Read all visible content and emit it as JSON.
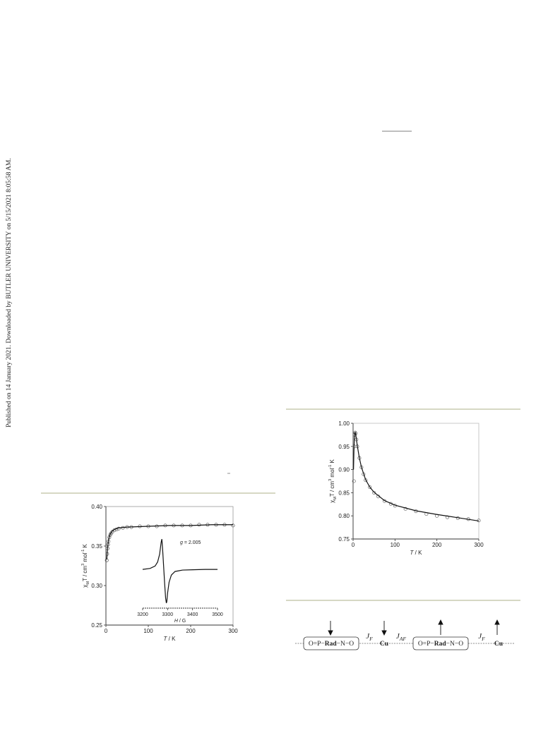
{
  "side_note": "Published on 14 January 2021. Downloaded by BUTLER UNIVERSITY on 5/15/2021 8:05:58 AM.",
  "chart_data": [
    {
      "type": "scatter",
      "xlabel": [
        {
          "text": "T",
          "italic": true
        },
        {
          "text": " / K"
        }
      ],
      "ylabel": [
        {
          "text": "χ"
        },
        {
          "text": "M",
          "sub": true
        },
        {
          "text": "T / cm"
        },
        {
          "text": "3",
          "sup": true
        },
        {
          "text": " mol"
        },
        {
          "text": "-1",
          "sup": true
        },
        {
          "text": " K"
        }
      ],
      "xlim": [
        0,
        300
      ],
      "ylim": [
        0.25,
        0.4
      ],
      "xticks": [
        0,
        100,
        200,
        300
      ],
      "yticks": [
        0.25,
        {
          "value": 0.3,
          "label": "0.30"
        },
        0.35,
        {
          "value": 0.4,
          "label": "0.40"
        }
      ],
      "series": [
        {
          "color": "#555555",
          "marker": "circle",
          "x": [
            2,
            3,
            4,
            5,
            6,
            8,
            10,
            12,
            15,
            20,
            25,
            30,
            40,
            50,
            60,
            80,
            100,
            120,
            140,
            160,
            180,
            200,
            220,
            240,
            260,
            280,
            300
          ],
          "values": [
            0.332,
            0.34,
            0.347,
            0.352,
            0.356,
            0.361,
            0.364,
            0.366,
            0.368,
            0.37,
            0.371,
            0.372,
            0.373,
            0.374,
            0.374,
            0.375,
            0.375,
            0.375,
            0.376,
            0.376,
            0.376,
            0.376,
            0.377,
            0.377,
            0.377,
            0.377,
            0.376
          ]
        },
        {
          "color": "#111111",
          "marker": "line",
          "x": [
            2,
            3,
            4,
            6,
            8,
            10,
            15,
            20,
            30,
            50,
            100,
            150,
            200,
            250,
            300
          ],
          "values": [
            0.333,
            0.341,
            0.348,
            0.357,
            0.362,
            0.365,
            0.369,
            0.371,
            0.373,
            0.374,
            0.375,
            0.376,
            0.376,
            0.377,
            0.377
          ]
        }
      ],
      "inset": {
        "type": "line",
        "xlabel": [
          {
            "text": "H",
            "italic": true
          },
          {
            "text": " / G"
          }
        ],
        "annotation": [
          {
            "text": "g",
            "italic": true
          },
          {
            "text": " = 2.005"
          }
        ],
        "xlim": [
          3200,
          3500
        ],
        "ylim": [
          -1.15,
          1.05
        ],
        "xticks": [
          3200,
          3300,
          3400,
          3500
        ],
        "series": [
          {
            "color": "#111111",
            "marker": "line",
            "x": [
              3200,
              3230,
              3250,
              3260,
              3268,
              3274,
              3277,
              3280,
              3284,
              3288,
              3292,
              3295,
              3297,
              3300,
              3306,
              3315,
              3330,
              3360,
              3400,
              3450,
              3500
            ],
            "values": [
              0,
              0.03,
              0.1,
              0.22,
              0.45,
              0.8,
              0.9,
              0.6,
              0.1,
              -0.4,
              -0.85,
              -1.0,
              -0.95,
              -0.7,
              -0.38,
              -0.17,
              -0.06,
              -0.02,
              -0.01,
              0,
              0
            ]
          }
        ]
      }
    },
    {
      "type": "scatter",
      "xlabel": [
        {
          "text": "T",
          "italic": true
        },
        {
          "text": " / K"
        }
      ],
      "ylabel": [
        {
          "text": "χ"
        },
        {
          "text": "M",
          "sub": true
        },
        {
          "text": "T / cm"
        },
        {
          "text": "3",
          "sup": true
        },
        {
          "text": " mol"
        },
        {
          "text": "-1",
          "sup": true
        },
        {
          "text": " K"
        }
      ],
      "xlim": [
        0,
        300
      ],
      "ylim": [
        0.75,
        1.0
      ],
      "xticks": [
        0,
        100,
        200,
        300
      ],
      "yticks": [
        0.75,
        {
          "value": 0.8,
          "label": "0.80"
        },
        0.85,
        {
          "value": 0.9,
          "label": "0.90"
        },
        0.95,
        {
          "value": 1.0,
          "label": "1.00"
        }
      ],
      "series": [
        {
          "color": "#666666",
          "marker": "circle",
          "x": [
            2,
            3,
            4,
            5,
            6,
            8,
            10,
            15,
            20,
            25,
            30,
            40,
            50,
            60,
            75,
            90,
            100,
            125,
            150,
            175,
            200,
            225,
            250,
            275,
            300
          ],
          "values": [
            0.875,
            0.95,
            0.975,
            0.98,
            0.978,
            0.965,
            0.95,
            0.925,
            0.905,
            0.89,
            0.877,
            0.862,
            0.85,
            0.842,
            0.832,
            0.826,
            0.822,
            0.815,
            0.81,
            0.804,
            0.8,
            0.797,
            0.795,
            0.793,
            0.79
          ]
        },
        {
          "color": "#111111",
          "marker": "line",
          "x": [
            1,
            2,
            3,
            4,
            5,
            6,
            8,
            10,
            15,
            20,
            30,
            40,
            50,
            75,
            100,
            150,
            200,
            250,
            300
          ],
          "values": [
            0.9,
            0.94,
            0.968,
            0.978,
            0.98,
            0.977,
            0.965,
            0.952,
            0.925,
            0.905,
            0.878,
            0.862,
            0.851,
            0.833,
            0.823,
            0.811,
            0.803,
            0.796,
            0.789
          ]
        }
      ]
    }
  ],
  "scheme": {
    "units": [
      [
        {
          "text": "O=P−"
        },
        {
          "text": "Rad",
          "bold": true
        },
        {
          "text": "−N−O"
        }
      ],
      [
        {
          "text": "Cu",
          "bold": true
        }
      ],
      [
        {
          "text": "O=P−"
        },
        {
          "text": "Rad",
          "bold": true
        },
        {
          "text": "−N−O"
        }
      ],
      [
        {
          "text": "Cu",
          "bold": true
        }
      ]
    ],
    "couplings": [
      [
        {
          "text": "J",
          "italic": true
        },
        {
          "text": "F",
          "italic": true,
          "sub": true
        }
      ],
      [
        {
          "text": "J",
          "italic": true
        },
        {
          "text": "AF",
          "italic": true,
          "sub": true
        }
      ],
      [
        {
          "text": "J",
          "italic": true
        },
        {
          "text": "F",
          "italic": true,
          "sub": true
        }
      ]
    ]
  }
}
